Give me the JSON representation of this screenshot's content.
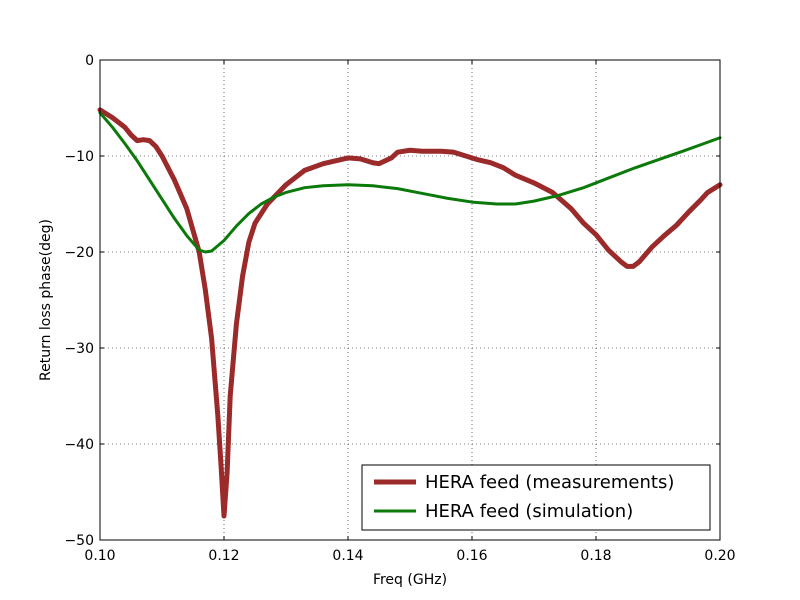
{
  "chart_data": {
    "type": "line",
    "title": "",
    "xlabel": "Freq (GHz)",
    "ylabel": "Return loss phase(deg)",
    "xlim": [
      0.1,
      0.2
    ],
    "ylim": [
      -50,
      0
    ],
    "xticks": [
      0.1,
      0.12,
      0.14,
      0.16,
      0.18,
      0.2
    ],
    "xtick_labels": [
      "0.10",
      "0.12",
      "0.14",
      "0.16",
      "0.18",
      "0.20"
    ],
    "yticks": [
      0,
      -10,
      -20,
      -30,
      -40,
      -50
    ],
    "ytick_labels": [
      "0",
      "−10",
      "−20",
      "−30",
      "−40",
      "−50"
    ],
    "grid": true,
    "legend_position": "lower-right",
    "series": [
      {
        "name": "HERA feed (measurements)",
        "color": "#9B2A2A",
        "points": [
          [
            0.1,
            -5.2
          ],
          [
            0.102,
            -6.0
          ],
          [
            0.104,
            -7.0
          ],
          [
            0.105,
            -7.8
          ],
          [
            0.106,
            -8.4
          ],
          [
            0.107,
            -8.3
          ],
          [
            0.108,
            -8.4
          ],
          [
            0.109,
            -9.0
          ],
          [
            0.11,
            -10.0
          ],
          [
            0.112,
            -12.5
          ],
          [
            0.114,
            -15.5
          ],
          [
            0.116,
            -20.0
          ],
          [
            0.117,
            -24.0
          ],
          [
            0.118,
            -29.0
          ],
          [
            0.119,
            -37.0
          ],
          [
            0.1195,
            -42.0
          ],
          [
            0.12,
            -47.5
          ],
          [
            0.1205,
            -43.0
          ],
          [
            0.121,
            -35.0
          ],
          [
            0.122,
            -27.5
          ],
          [
            0.123,
            -22.5
          ],
          [
            0.124,
            -19.0
          ],
          [
            0.125,
            -17.0
          ],
          [
            0.127,
            -15.0
          ],
          [
            0.13,
            -13.0
          ],
          [
            0.133,
            -11.5
          ],
          [
            0.136,
            -10.8
          ],
          [
            0.138,
            -10.5
          ],
          [
            0.14,
            -10.2
          ],
          [
            0.142,
            -10.3
          ],
          [
            0.144,
            -10.7
          ],
          [
            0.145,
            -10.8
          ],
          [
            0.147,
            -10.2
          ],
          [
            0.148,
            -9.6
          ],
          [
            0.15,
            -9.4
          ],
          [
            0.152,
            -9.5
          ],
          [
            0.155,
            -9.5
          ],
          [
            0.157,
            -9.6
          ],
          [
            0.159,
            -10.0
          ],
          [
            0.161,
            -10.4
          ],
          [
            0.163,
            -10.7
          ],
          [
            0.165,
            -11.2
          ],
          [
            0.167,
            -12.0
          ],
          [
            0.17,
            -12.8
          ],
          [
            0.173,
            -13.8
          ],
          [
            0.176,
            -15.5
          ],
          [
            0.178,
            -17.0
          ],
          [
            0.18,
            -18.2
          ],
          [
            0.182,
            -19.8
          ],
          [
            0.184,
            -21.0
          ],
          [
            0.185,
            -21.5
          ],
          [
            0.186,
            -21.5
          ],
          [
            0.187,
            -21.0
          ],
          [
            0.189,
            -19.5
          ],
          [
            0.191,
            -18.3
          ],
          [
            0.193,
            -17.2
          ],
          [
            0.195,
            -15.8
          ],
          [
            0.197,
            -14.5
          ],
          [
            0.198,
            -13.8
          ],
          [
            0.2,
            -13.0
          ]
        ]
      },
      {
        "name": "HERA feed (simulation)",
        "color": "#0B7A0B",
        "points": [
          [
            0.1,
            -5.5
          ],
          [
            0.102,
            -7.0
          ],
          [
            0.104,
            -8.7
          ],
          [
            0.106,
            -10.5
          ],
          [
            0.108,
            -12.5
          ],
          [
            0.11,
            -14.5
          ],
          [
            0.112,
            -16.5
          ],
          [
            0.114,
            -18.3
          ],
          [
            0.116,
            -19.8
          ],
          [
            0.117,
            -20.0
          ],
          [
            0.118,
            -19.9
          ],
          [
            0.12,
            -18.8
          ],
          [
            0.122,
            -17.3
          ],
          [
            0.124,
            -16.0
          ],
          [
            0.126,
            -15.0
          ],
          [
            0.128,
            -14.3
          ],
          [
            0.13,
            -13.8
          ],
          [
            0.133,
            -13.3
          ],
          [
            0.136,
            -13.1
          ],
          [
            0.14,
            -13.0
          ],
          [
            0.144,
            -13.1
          ],
          [
            0.148,
            -13.4
          ],
          [
            0.152,
            -13.9
          ],
          [
            0.156,
            -14.4
          ],
          [
            0.16,
            -14.8
          ],
          [
            0.164,
            -15.0
          ],
          [
            0.167,
            -15.0
          ],
          [
            0.17,
            -14.7
          ],
          [
            0.174,
            -14.1
          ],
          [
            0.178,
            -13.3
          ],
          [
            0.182,
            -12.3
          ],
          [
            0.186,
            -11.3
          ],
          [
            0.19,
            -10.4
          ],
          [
            0.194,
            -9.5
          ],
          [
            0.197,
            -8.8
          ],
          [
            0.2,
            -8.1
          ]
        ]
      }
    ]
  }
}
